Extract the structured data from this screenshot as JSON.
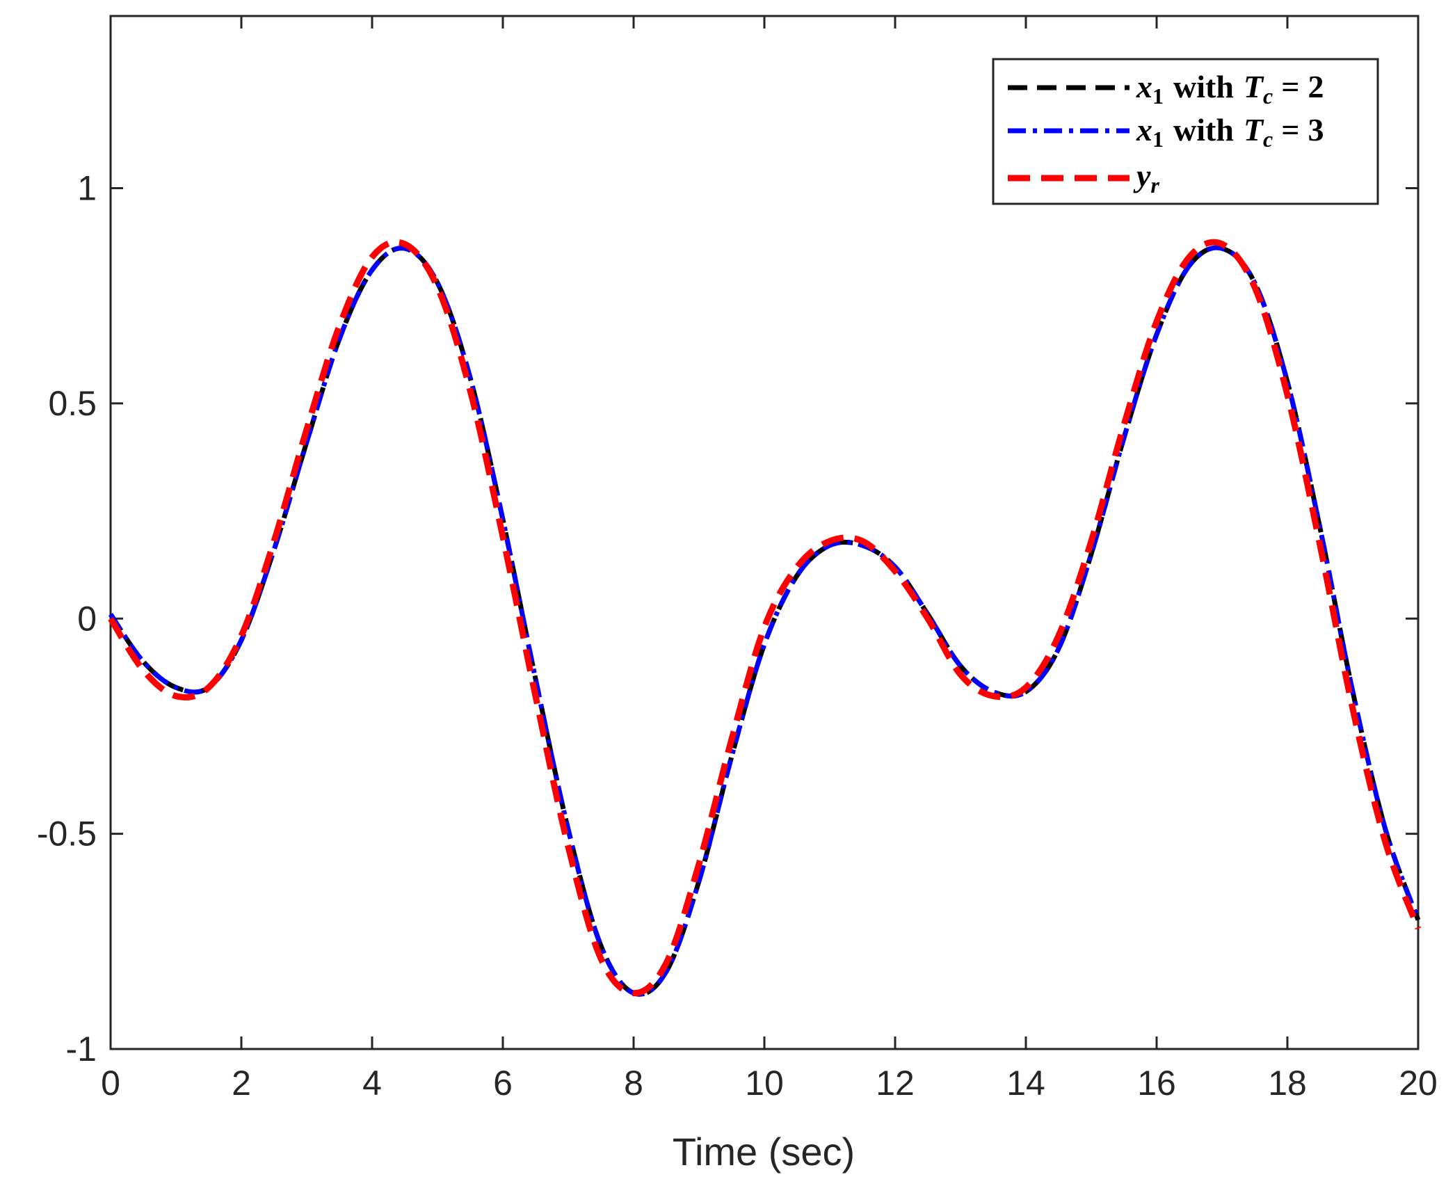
{
  "chart_data": {
    "type": "line",
    "xlabel": "Time (sec)",
    "ylabel": "",
    "xlim": [
      0,
      20
    ],
    "ylim": [
      -1,
      1.4
    ],
    "x_ticks": [
      "0",
      "2",
      "4",
      "6",
      "8",
      "10",
      "12",
      "14",
      "16",
      "18",
      "20"
    ],
    "y_ticks": [
      "-1",
      "-0.5",
      "0",
      "0.5",
      "1"
    ],
    "grid": false,
    "legend_placement": "top-right",
    "series": [
      {
        "name": "x_1 with T_c = 2",
        "color": "#000000",
        "style": "dashed",
        "x": [
          0,
          0.5,
          1,
          1.5,
          2,
          2.5,
          3,
          3.5,
          4,
          4.5,
          5,
          5.5,
          6,
          6.5,
          7,
          7.5,
          8,
          8.5,
          9,
          9.5,
          10,
          10.5,
          11,
          11.5,
          12,
          12.5,
          13,
          13.5,
          14,
          14.5,
          15,
          15.5,
          16,
          16.5,
          17,
          17.5,
          18,
          18.5,
          19,
          19.5,
          20
        ],
        "y": [
          0.01,
          -0.1,
          -0.16,
          -0.16,
          -0.05,
          0.16,
          0.41,
          0.65,
          0.81,
          0.86,
          0.78,
          0.56,
          0.23,
          -0.14,
          -0.49,
          -0.76,
          -0.87,
          -0.82,
          -0.61,
          -0.32,
          -0.06,
          0.1,
          0.17,
          0.17,
          0.12,
          0.01,
          -0.11,
          -0.17,
          -0.17,
          -0.07,
          0.15,
          0.42,
          0.66,
          0.82,
          0.86,
          0.78,
          0.55,
          0.21,
          -0.17,
          -0.49,
          -0.7
        ]
      },
      {
        "name": "x_1 with T_c = 3",
        "color": "#0000ff",
        "style": "dashdot",
        "x": [
          0,
          0.5,
          1,
          1.5,
          2,
          2.5,
          3,
          3.5,
          4,
          4.5,
          5,
          5.5,
          6,
          6.5,
          7,
          7.5,
          8,
          8.5,
          9,
          9.5,
          10,
          10.5,
          11,
          11.5,
          12,
          12.5,
          13,
          13.5,
          14,
          14.5,
          15,
          15.5,
          16,
          16.5,
          17,
          17.5,
          18,
          18.5,
          19,
          19.5,
          20
        ],
        "y": [
          0.01,
          -0.1,
          -0.16,
          -0.16,
          -0.05,
          0.16,
          0.41,
          0.65,
          0.81,
          0.86,
          0.78,
          0.56,
          0.23,
          -0.14,
          -0.49,
          -0.76,
          -0.87,
          -0.82,
          -0.61,
          -0.32,
          -0.06,
          0.1,
          0.17,
          0.17,
          0.12,
          0.01,
          -0.11,
          -0.17,
          -0.17,
          -0.07,
          0.15,
          0.42,
          0.66,
          0.82,
          0.86,
          0.78,
          0.55,
          0.21,
          -0.17,
          -0.49,
          -0.7
        ]
      },
      {
        "name": "y_r",
        "color": "#ff0000",
        "style": "dashed",
        "x": [
          0,
          0.5,
          1,
          1.5,
          2,
          2.5,
          3,
          3.5,
          4,
          4.5,
          5,
          5.5,
          6,
          6.5,
          7,
          7.5,
          8,
          8.5,
          9,
          9.5,
          10,
          10.5,
          11,
          11.5,
          12,
          12.5,
          13,
          13.5,
          14,
          14.5,
          15,
          15.5,
          16,
          16.5,
          17,
          17.5,
          18,
          18.5,
          19,
          19.5,
          20
        ],
        "y": [
          0,
          -0.12,
          -0.18,
          -0.16,
          -0.04,
          0.18,
          0.44,
          0.68,
          0.84,
          0.87,
          0.77,
          0.53,
          0.19,
          -0.18,
          -0.53,
          -0.79,
          -0.87,
          -0.8,
          -0.57,
          -0.28,
          -0.02,
          0.12,
          0.18,
          0.18,
          0.11,
          0.0,
          -0.13,
          -0.18,
          -0.16,
          -0.04,
          0.18,
          0.45,
          0.69,
          0.84,
          0.87,
          0.77,
          0.52,
          0.17,
          -0.21,
          -0.52,
          -0.72
        ]
      }
    ],
    "legend": {
      "entries": [
        {
          "var": "x",
          "sub": "1",
          "with": "with",
          "param": "T",
          "param_sub": "c",
          "eq": "=",
          "value": "2"
        },
        {
          "var": "x",
          "sub": "1",
          "with": "with",
          "param": "T",
          "param_sub": "c",
          "eq": "=",
          "value": "3"
        },
        {
          "var": "y",
          "sub": "r"
        }
      ]
    }
  }
}
